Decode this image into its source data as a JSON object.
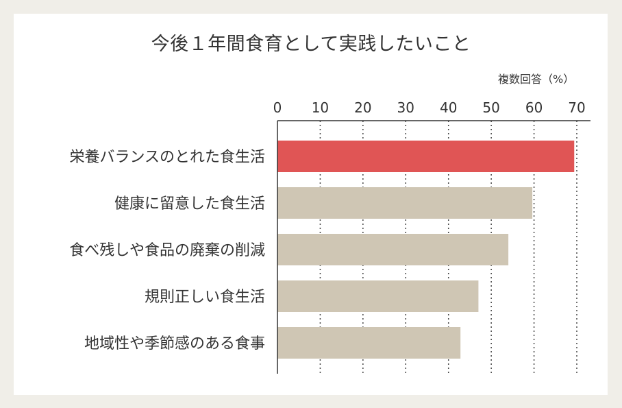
{
  "chart_data": {
    "type": "bar",
    "orientation": "horizontal",
    "title": "今後１年間食育として実践したいこと",
    "unit_label": "複数回答（%）",
    "categories": [
      "栄養バランスのとれた食生活",
      "健康に留意した食生活",
      "食べ残しや食品の廃棄の削減",
      "規則正しい食生活",
      "地域性や季節感のある食事"
    ],
    "values": [
      69.4,
      59.6,
      54.0,
      47.0,
      42.8
    ],
    "xlim": [
      0,
      70
    ],
    "xticks": [
      0,
      10,
      20,
      30,
      40,
      50,
      60,
      70
    ],
    "grid": true,
    "highlight_index": 0,
    "colors": {
      "highlight": "#e05555",
      "bar": "#cfc6b4",
      "grid": "#444444",
      "axis": "#333333",
      "background": "#ffffff",
      "page": "#f0eee8"
    }
  }
}
